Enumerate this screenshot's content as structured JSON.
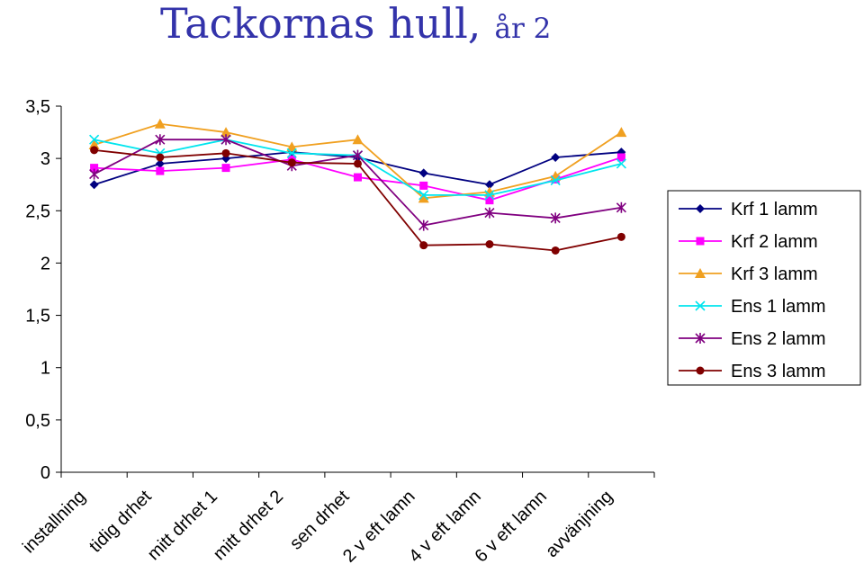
{
  "chart_data": {
    "type": "line",
    "title": "Tackornas hull,",
    "subtitle": "år 2",
    "xlabel": "",
    "ylabel": "",
    "ylim": [
      0,
      3.5
    ],
    "yticks": [
      "0",
      "0,5",
      "1",
      "1,5",
      "2",
      "2,5",
      "3",
      "3,5"
    ],
    "ytick_values": [
      0,
      0.5,
      1,
      1.5,
      2,
      2.5,
      3,
      3.5
    ],
    "grid": false,
    "legend_position": "right",
    "categories": [
      "installning",
      "tidig drhet",
      "mitt drhet 1",
      "mitt drhet 2",
      "sen drhet",
      "2 v eft lamn",
      "4 v eft lamn",
      "6 v eft lamn",
      "avvänjning"
    ],
    "series": [
      {
        "name": "Krf 1 lamm",
        "color": "#000080",
        "marker": "diamond",
        "values": [
          2.75,
          2.95,
          3.0,
          3.06,
          3.01,
          2.86,
          2.75,
          3.01,
          3.06
        ]
      },
      {
        "name": "Krf 2 lamm",
        "color": "#ff00ff",
        "marker": "square",
        "values": [
          2.91,
          2.88,
          2.91,
          2.99,
          2.82,
          2.74,
          2.6,
          2.8,
          3.01
        ]
      },
      {
        "name": "Krf 3 lamm",
        "color": "#f0a020",
        "marker": "triangle",
        "values": [
          3.13,
          3.33,
          3.25,
          3.11,
          3.18,
          2.62,
          2.68,
          2.83,
          3.25
        ]
      },
      {
        "name": "Ens 1 lamm",
        "color": "#00e5ee",
        "marker": "x",
        "values": [
          3.18,
          3.05,
          3.18,
          3.05,
          3.03,
          2.65,
          2.65,
          2.79,
          2.95
        ]
      },
      {
        "name": "Ens 2 lamm",
        "color": "#800080",
        "marker": "star",
        "values": [
          2.85,
          3.18,
          3.18,
          2.93,
          3.03,
          2.36,
          2.48,
          2.43,
          2.53
        ]
      },
      {
        "name": "Ens 3 lamm",
        "color": "#800000",
        "marker": "circle",
        "values": [
          3.08,
          3.01,
          3.05,
          2.96,
          2.95,
          2.17,
          2.18,
          2.12,
          2.25
        ]
      }
    ]
  }
}
